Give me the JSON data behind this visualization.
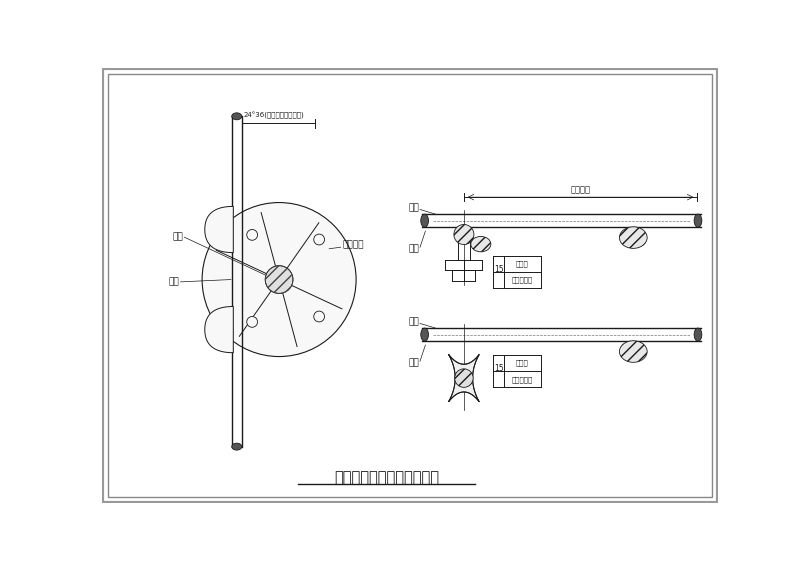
{
  "bg_color": "#ffffff",
  "line_color": "#1a1a1a",
  "title": "钢筋绑扎保护卡工作示意图",
  "left_label1": "主筋",
  "left_label2": "箍筋",
  "left_top_label": "24°36(混凝土保护层厚度)",
  "left_support_label": "塑料支架",
  "right_top_label1": "钢筋间距",
  "right_label_rebar1": "板筋",
  "right_label_stir1": "箍筋",
  "right_label_rebar2": "板筋",
  "right_label_stir2": "箍筋",
  "dim_text1": "混凝土保护",
  "dim_text2": "层厚度"
}
